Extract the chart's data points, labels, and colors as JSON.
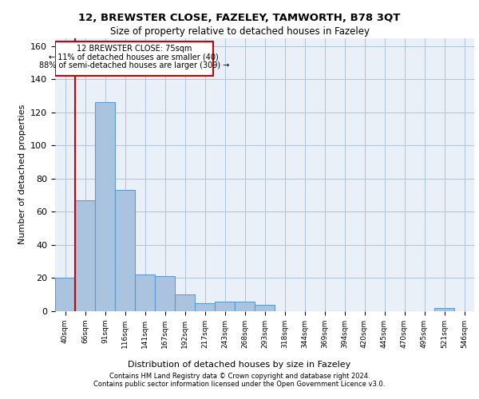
{
  "title1": "12, BREWSTER CLOSE, FAZELEY, TAMWORTH, B78 3QT",
  "title2": "Size of property relative to detached houses in Fazeley",
  "xlabel": "Distribution of detached houses by size in Fazeley",
  "ylabel": "Number of detached properties",
  "footnote1": "Contains HM Land Registry data © Crown copyright and database right 2024.",
  "footnote2": "Contains public sector information licensed under the Open Government Licence v3.0.",
  "annotation_line1": "12 BREWSTER CLOSE: 75sqm",
  "annotation_line2": "← 11% of detached houses are smaller (40)",
  "annotation_line3": "88% of semi-detached houses are larger (309) →",
  "bar_color": "#aac4e0",
  "bar_edge_color": "#5b9bd5",
  "vline_color": "#cc0000",
  "categories": [
    "40sqm",
    "66sqm",
    "91sqm",
    "116sqm",
    "141sqm",
    "167sqm",
    "192sqm",
    "217sqm",
    "243sqm",
    "268sqm",
    "293sqm",
    "318sqm",
    "344sqm",
    "369sqm",
    "394sqm",
    "420sqm",
    "445sqm",
    "470sqm",
    "495sqm",
    "521sqm",
    "546sqm"
  ],
  "values": [
    20,
    67,
    126,
    73,
    22,
    21,
    10,
    5,
    6,
    6,
    4,
    0,
    0,
    0,
    0,
    0,
    0,
    0,
    0,
    2,
    0
  ],
  "ylim": [
    0,
    165
  ],
  "yticks": [
    0,
    20,
    40,
    60,
    80,
    100,
    120,
    140,
    160
  ],
  "grid_color": "#b0c4d8",
  "bg_color": "#eaf0f8",
  "vline_x": 0.5
}
